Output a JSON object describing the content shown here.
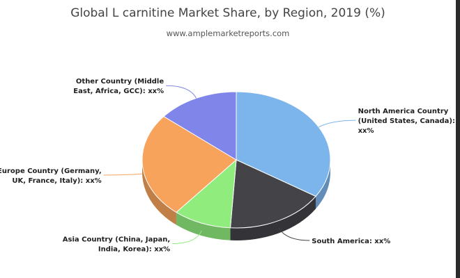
{
  "chart_data": {
    "type": "pie",
    "title": "Global L carnitine Market Share, by Region, 2019 (%)",
    "subtitle": "www.amplemarketreports.com",
    "slices": [
      {
        "label": "North America Country (United States, Canada): xx%",
        "lines": [
          "North America Country",
          "(United States, Canada):",
          "xx%"
        ],
        "value": 34,
        "color": "#7cb5ec"
      },
      {
        "label": "South America: xx%",
        "lines": [
          "South America: xx%"
        ],
        "value": 17,
        "color": "#434348"
      },
      {
        "label": "Asia Country (China, Japan, India, Korea): xx%",
        "lines": [
          "Asia Country (China, Japan,",
          "India, Korea): xx%"
        ],
        "value": 10,
        "color": "#90ed7d"
      },
      {
        "label": "Europe Country (Germany, UK, France, Italy): xx%",
        "lines": [
          "Europe Country (Germany,",
          "UK, France, Italy): xx%"
        ],
        "value": 25,
        "color": "#f7a35c"
      },
      {
        "label": "Other Country (Middle East, Africa, GCC): xx%",
        "lines": [
          "Other Country (Middle",
          "East, Africa, GCC): xx%"
        ],
        "value": 14,
        "color": "#8085e9"
      }
    ],
    "start_angle_deg": -90,
    "legend": "none",
    "grid": false
  }
}
